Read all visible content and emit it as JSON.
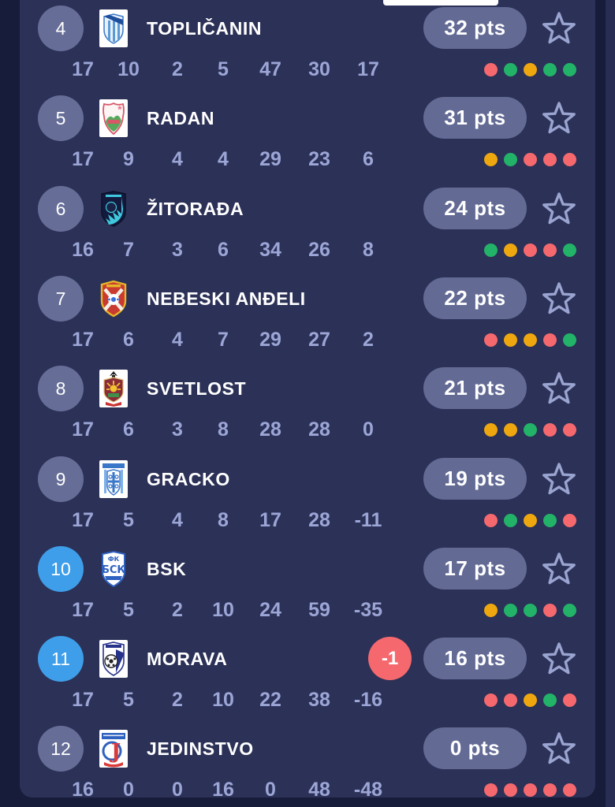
{
  "page": {
    "top_scroll_indicator": true,
    "view": "league-standings-list"
  },
  "colors": {
    "outer_background": "#161c39",
    "panel_background": "#2c3157",
    "position_circle": "#666e98",
    "position_circle_highlight": "#3e9ee9",
    "points_pill": "#636b95",
    "stats_text": "#9ca6d6",
    "star_outline": "#9aa4d0",
    "form_win": "#22b368",
    "form_draw": "#eea70f",
    "form_loss": "#f5696e",
    "penalty_badge": "#f5696e"
  },
  "table": {
    "stat_columns": [
      "played",
      "wins",
      "draws",
      "losses",
      "goals_for",
      "goals_against",
      "goal_difference"
    ],
    "rows": [
      {
        "pos": "4",
        "team": "TOPLIČANIN",
        "points": "32 pts",
        "highlighted": false,
        "penalty": null,
        "stats": [
          "17",
          "10",
          "2",
          "5",
          "47",
          "30",
          "17"
        ],
        "form": [
          "red",
          "green",
          "orange",
          "green",
          "green"
        ],
        "logo": "toplicanin-crest"
      },
      {
        "pos": "5",
        "team": "RADAN",
        "points": "31 pts",
        "highlighted": false,
        "penalty": null,
        "stats": [
          "17",
          "9",
          "4",
          "4",
          "29",
          "23",
          "6"
        ],
        "form": [
          "orange",
          "green",
          "red",
          "red",
          "red"
        ],
        "logo": "radan-crest"
      },
      {
        "pos": "6",
        "team": "ŽITORAĐA",
        "points": "24 pts",
        "highlighted": false,
        "penalty": null,
        "stats": [
          "16",
          "7",
          "3",
          "6",
          "34",
          "26",
          "8"
        ],
        "form": [
          "green",
          "orange",
          "red",
          "red",
          "green"
        ],
        "logo": "zitoradja-crest"
      },
      {
        "pos": "7",
        "team": "NEBESKI ANĐELI",
        "points": "22 pts",
        "highlighted": false,
        "penalty": null,
        "stats": [
          "17",
          "6",
          "4",
          "7",
          "29",
          "27",
          "2"
        ],
        "form": [
          "red",
          "orange",
          "orange",
          "red",
          "green"
        ],
        "logo": "nebeski-andjeli-crest"
      },
      {
        "pos": "8",
        "team": "SVETLOST",
        "points": "21 pts",
        "highlighted": false,
        "penalty": null,
        "stats": [
          "17",
          "6",
          "3",
          "8",
          "28",
          "28",
          "0"
        ],
        "form": [
          "orange",
          "orange",
          "green",
          "red",
          "red"
        ],
        "logo": "svetlost-crest"
      },
      {
        "pos": "9",
        "team": "GRACKO",
        "points": "19 pts",
        "highlighted": false,
        "penalty": null,
        "stats": [
          "17",
          "5",
          "4",
          "8",
          "17",
          "28",
          "-11"
        ],
        "form": [
          "red",
          "green",
          "orange",
          "green",
          "red"
        ],
        "logo": "gracko-crest"
      },
      {
        "pos": "10",
        "team": "BSK",
        "points": "17 pts",
        "highlighted": true,
        "penalty": null,
        "stats": [
          "17",
          "5",
          "2",
          "10",
          "24",
          "59",
          "-35"
        ],
        "form": [
          "orange",
          "green",
          "green",
          "red",
          "green"
        ],
        "logo": "bsk-crest"
      },
      {
        "pos": "11",
        "team": "MORAVA",
        "points": "16 pts",
        "highlighted": true,
        "penalty": "-1",
        "stats": [
          "17",
          "5",
          "2",
          "10",
          "22",
          "38",
          "-16"
        ],
        "form": [
          "red",
          "red",
          "orange",
          "green",
          "red"
        ],
        "logo": "morava-crest"
      },
      {
        "pos": "12",
        "team": "JEDINSTVO",
        "points": "0 pts",
        "highlighted": false,
        "penalty": null,
        "stats": [
          "16",
          "0",
          "0",
          "16",
          "0",
          "48",
          "-48"
        ],
        "form": [
          "red",
          "red",
          "red",
          "red",
          "red"
        ],
        "logo": "jedinstvo-crest"
      }
    ]
  }
}
